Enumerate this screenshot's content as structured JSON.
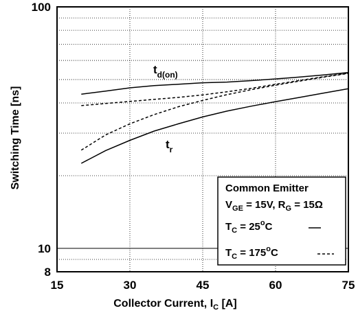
{
  "chart_data": {
    "type": "line",
    "x_axis": {
      "label": "Collector Current, I",
      "label_sub": "C",
      "label_unit": " [A]",
      "range": [
        15,
        75
      ],
      "ticks": [
        15,
        30,
        45,
        60,
        75
      ],
      "tick_labels": [
        "15",
        "30",
        "45",
        "60",
        "75"
      ]
    },
    "y_axis": {
      "label": "Switching Time [ns]",
      "scale": "log",
      "range": [
        8,
        100
      ],
      "ticks": [
        8,
        10,
        100
      ],
      "tick_labels": [
        "8",
        "10",
        "100"
      ],
      "minor_grid": [
        20,
        30,
        40,
        50,
        60,
        70,
        80,
        90,
        9
      ]
    },
    "grid": true,
    "series": [
      {
        "name": "t_d(on)",
        "temperature": "25C",
        "style": "solid",
        "x": [
          20,
          25,
          30,
          35,
          40,
          45,
          50,
          55,
          60,
          65,
          70,
          75
        ],
        "y": [
          43.5,
          44.8,
          46.2,
          47.2,
          47.8,
          48.5,
          48.8,
          49.5,
          50.3,
          51.2,
          52.3,
          53.5
        ]
      },
      {
        "name": "t_d(on)",
        "temperature": "175C",
        "style": "dashed",
        "x": [
          20,
          25,
          30,
          35,
          40,
          45,
          50,
          55,
          60,
          65,
          70,
          75
        ],
        "y": [
          39.0,
          39.8,
          40.6,
          41.4,
          42.2,
          43.2,
          44.5,
          46.0,
          47.8,
          49.6,
          51.4,
          53.2
        ]
      },
      {
        "name": "t_r",
        "temperature": "25C",
        "style": "solid",
        "x": [
          20,
          25,
          30,
          35,
          40,
          45,
          50,
          55,
          60,
          65,
          70,
          75
        ],
        "y": [
          22.5,
          25.4,
          28.0,
          30.6,
          32.8,
          35.0,
          37.0,
          38.8,
          40.5,
          42.2,
          44.0,
          45.8
        ]
      },
      {
        "name": "t_r",
        "temperature": "175C",
        "style": "dashed",
        "x": [
          20,
          25,
          30,
          35,
          40,
          45,
          50,
          55,
          60,
          65,
          70,
          75
        ],
        "y": [
          25.5,
          29.5,
          32.8,
          35.8,
          38.6,
          41.0,
          43.3,
          45.4,
          47.4,
          49.3,
          51.2,
          53.0
        ]
      }
    ],
    "curve_labels": [
      {
        "main": "t",
        "sub": "d(on)"
      },
      {
        "main": "t",
        "sub": "r"
      }
    ],
    "legend": {
      "placement": "bottom-right",
      "title": "Common Emitter",
      "cond_vge": "V",
      "cond_vge_sub": "GE",
      "cond_vge_val": " = 15V, R",
      "cond_rg_sub": "G",
      "cond_rg_val": " = 15Ω",
      "entries": [
        {
          "pre": "T",
          "sub": "C",
          "val": " = 25",
          "sup": "o",
          "post": "C",
          "style": "solid"
        },
        {
          "pre": "T",
          "sub": "C",
          "val": " = 175",
          "sup": "o",
          "post": "C",
          "style": "dashed"
        }
      ]
    }
  }
}
